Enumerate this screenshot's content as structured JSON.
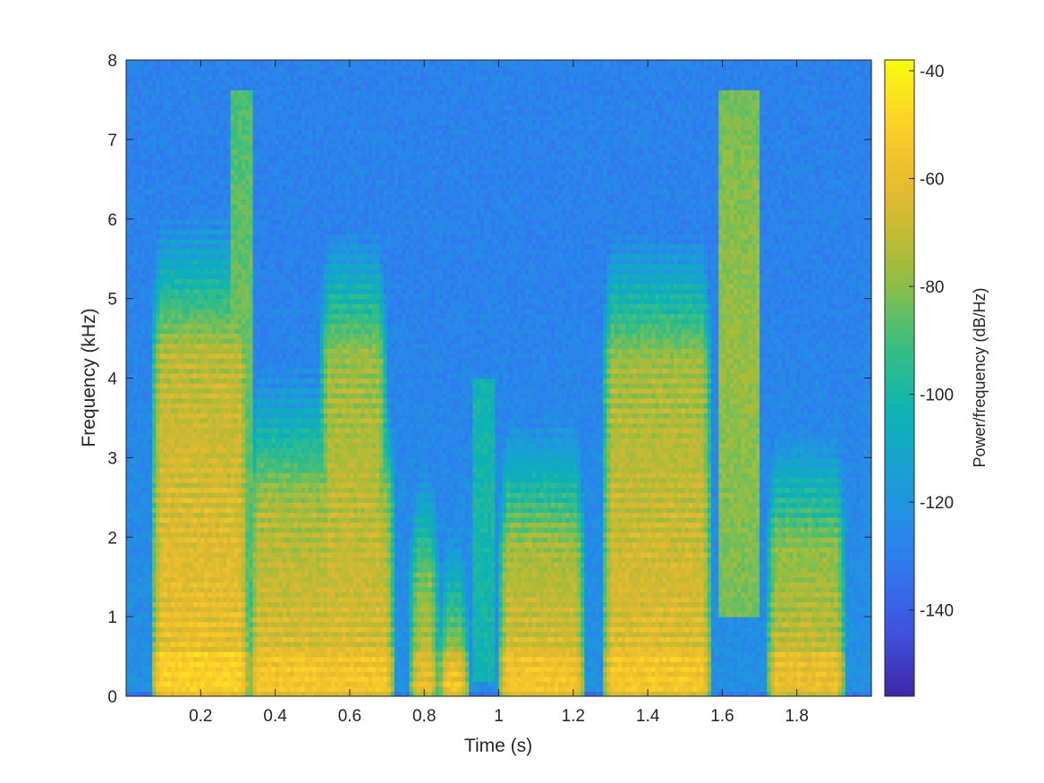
{
  "chart_data": {
    "type": "heatmap",
    "title": "",
    "xlabel": "Time (s)",
    "ylabel": "Frequency (kHz)",
    "xlim": [
      0.0,
      2.0
    ],
    "ylim": [
      0,
      8
    ],
    "xticks": [
      0.2,
      0.4,
      0.6,
      0.8,
      1,
      1.2,
      1.4,
      1.6,
      1.8
    ],
    "xtick_labels": [
      "0.2",
      "0.4",
      "0.6",
      "0.8",
      "1",
      "1.2",
      "1.4",
      "1.6",
      "1.8"
    ],
    "yticks": [
      0,
      1,
      2,
      3,
      4,
      5,
      6,
      7,
      8
    ],
    "ytick_labels": [
      "0",
      "1",
      "2",
      "3",
      "4",
      "5",
      "6",
      "7",
      "8"
    ],
    "grid": false,
    "colormap": "parula",
    "colors": [
      "#3e26a8",
      "#4056e5",
      "#2d7fef",
      "#1c9dd9",
      "#0cb2b4",
      "#3cbf7e",
      "#9ebd3c",
      "#e0b82f",
      "#fbcc2a",
      "#f9fb0e"
    ],
    "colorbar": {
      "label": "Power/frequency (dB/Hz)",
      "range": [
        -156,
        -38
      ],
      "ticks": [
        -40,
        -60,
        -80,
        -100,
        -120,
        -140
      ],
      "tick_labels": [
        "-40",
        "-60",
        "-80",
        "-100",
        "-120",
        "-140"
      ]
    },
    "noise_floor_db": -128,
    "voiced_segments": [
      {
        "t0": 0.07,
        "t1": 0.33,
        "f0_khz": 0.13,
        "top_khz": 4.3,
        "level_db": -58
      },
      {
        "t0": 0.33,
        "t1": 0.72,
        "f0_khz": 0.12,
        "top_khz": 2.5,
        "level_db": -62
      },
      {
        "t0": 0.52,
        "t1": 0.7,
        "f0_khz": 0.12,
        "top_khz": 4.3,
        "level_db": -64
      },
      {
        "t0": 0.76,
        "t1": 0.84,
        "f0_khz": 0.14,
        "top_khz": 1.5,
        "level_db": -68
      },
      {
        "t0": 0.84,
        "t1": 0.92,
        "f0_khz": 0.14,
        "top_khz": 0.5,
        "level_db": -60
      },
      {
        "t0": 1.0,
        "t1": 1.23,
        "f0_khz": 0.12,
        "top_khz": 1.9,
        "level_db": -62
      },
      {
        "t0": 1.28,
        "t1": 1.57,
        "f0_khz": 0.12,
        "top_khz": 4.2,
        "level_db": -62
      },
      {
        "t0": 1.72,
        "t1": 1.93,
        "f0_khz": 0.13,
        "top_khz": 1.9,
        "level_db": -66
      }
    ],
    "fricative_segments": [
      {
        "t0": 0.28,
        "t1": 0.34,
        "f_lo_khz": 1.5,
        "f_hi_khz": 7.6,
        "level_db": -84
      },
      {
        "t0": 1.59,
        "t1": 1.7,
        "f_lo_khz": 1.0,
        "f_hi_khz": 7.6,
        "level_db": -78
      },
      {
        "t0": 0.93,
        "t1": 0.99,
        "f_lo_khz": 0.2,
        "f_hi_khz": 4.0,
        "level_db": -100
      }
    ]
  }
}
